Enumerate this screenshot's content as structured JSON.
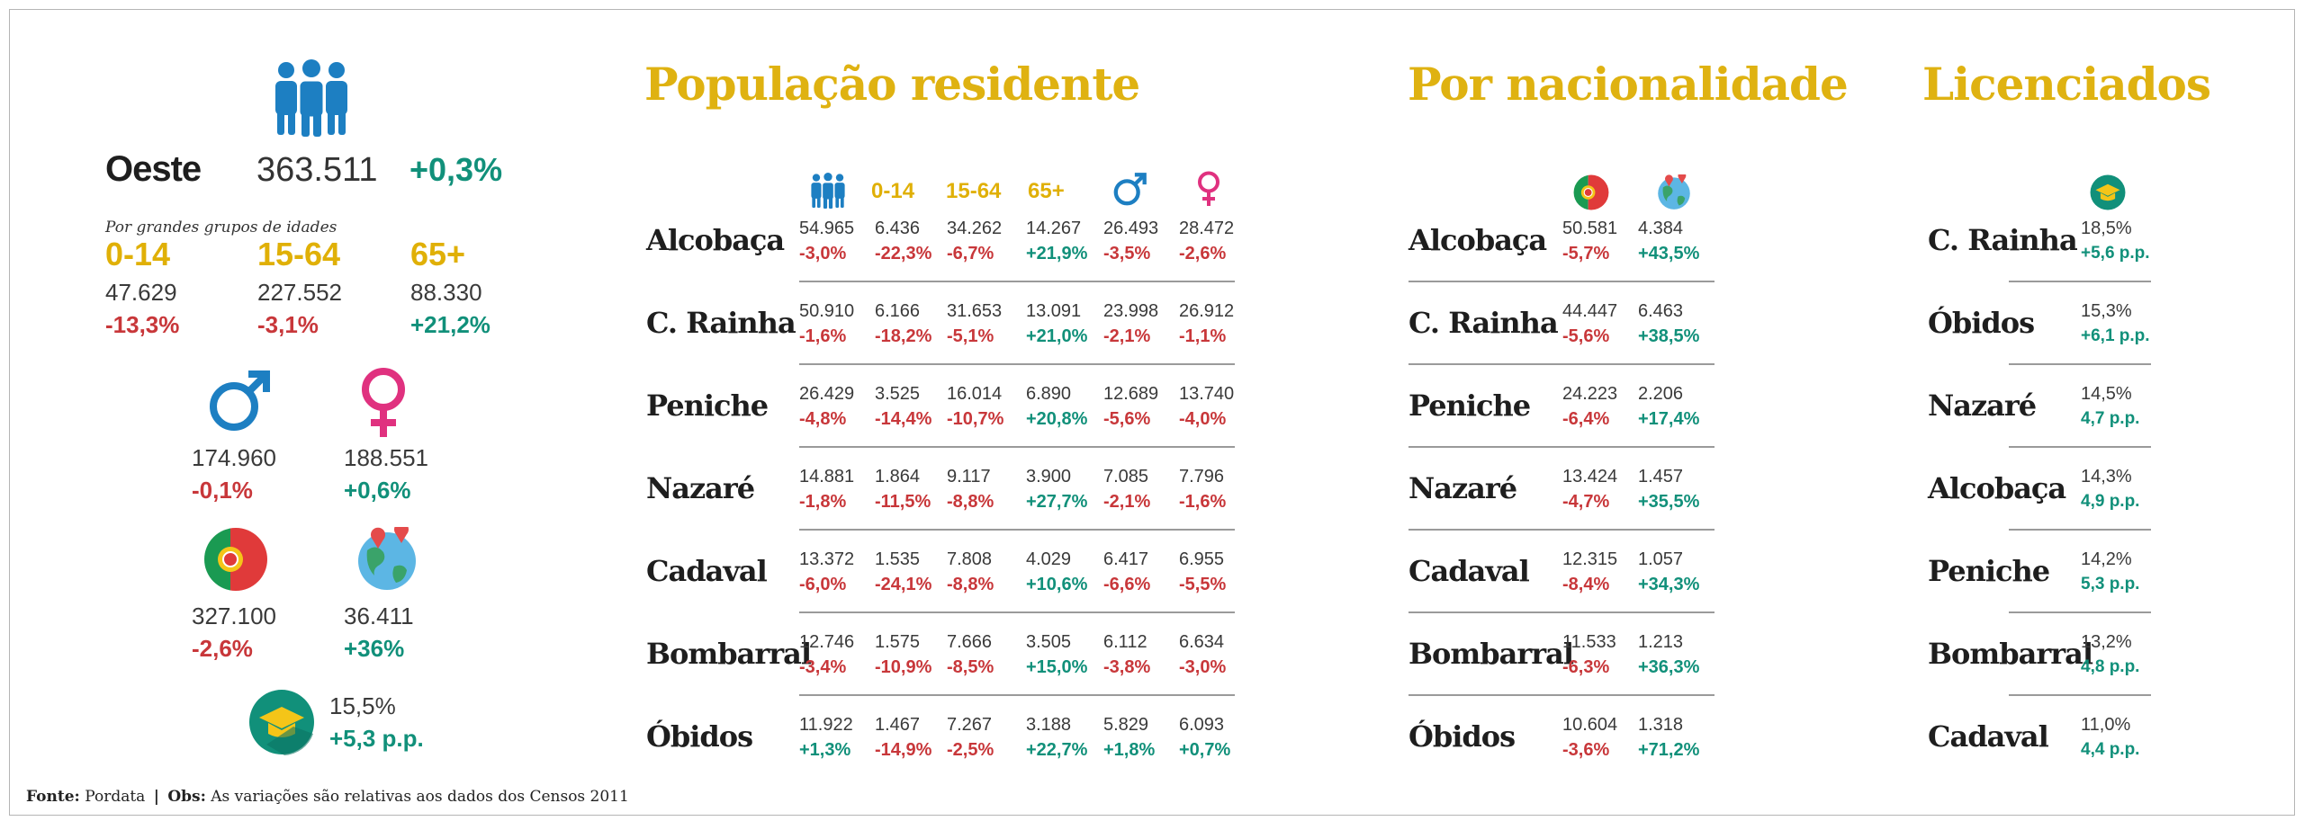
{
  "summary": {
    "region": "Oeste",
    "population": "363.511",
    "population_change": "+0,3%",
    "age_groups_label": "Por grandes grupos de idades",
    "age_groups": [
      {
        "label": "0-14",
        "value": "47.629",
        "change": "-13,3%"
      },
      {
        "label": "15-64",
        "value": "227.552",
        "change": "-3,1%"
      },
      {
        "label": "65+",
        "value": "88.330",
        "change": "+21,2%"
      }
    ],
    "male": {
      "value": "174.960",
      "change": "-0,1%"
    },
    "female": {
      "value": "188.551",
      "change": "+0,6%"
    },
    "portuguese": {
      "value": "327.100",
      "change": "-2,6%"
    },
    "foreign": {
      "value": "36.411",
      "change": "+36%"
    },
    "graduates": {
      "value": "15,5%",
      "change": "+5,3 p.p."
    }
  },
  "populacao": {
    "title": "População residente",
    "headers": [
      "0-14",
      "15-64",
      "65+"
    ],
    "rows": [
      {
        "name": "Alcobaça",
        "cells": [
          [
            "54.965",
            "-3,0%"
          ],
          [
            "6.436",
            "-22,3%"
          ],
          [
            "34.262",
            "-6,7%"
          ],
          [
            "14.267",
            "+21,9%"
          ],
          [
            "26.493",
            "-3,5%"
          ],
          [
            "28.472",
            "-2,6%"
          ]
        ]
      },
      {
        "name": "C. Rainha",
        "cells": [
          [
            "50.910",
            "-1,6%"
          ],
          [
            "6.166",
            "-18,2%"
          ],
          [
            "31.653",
            "-5,1%"
          ],
          [
            "13.091",
            "+21,0%"
          ],
          [
            "23.998",
            "-2,1%"
          ],
          [
            "26.912",
            "-1,1%"
          ]
        ]
      },
      {
        "name": "Peniche",
        "cells": [
          [
            "26.429",
            "-4,8%"
          ],
          [
            "3.525",
            "-14,4%"
          ],
          [
            "16.014",
            "-10,7%"
          ],
          [
            "6.890",
            "+20,8%"
          ],
          [
            "12.689",
            "-5,6%"
          ],
          [
            "13.740",
            "-4,0%"
          ]
        ]
      },
      {
        "name": "Nazaré",
        "cells": [
          [
            "14.881",
            "-1,8%"
          ],
          [
            "1.864",
            "-11,5%"
          ],
          [
            "9.117",
            "-8,8%"
          ],
          [
            "3.900",
            "+27,7%"
          ],
          [
            "7.085",
            "-2,1%"
          ],
          [
            "7.796",
            "-1,6%"
          ]
        ]
      },
      {
        "name": "Cadaval",
        "cells": [
          [
            "13.372",
            "-6,0%"
          ],
          [
            "1.535",
            "-24,1%"
          ],
          [
            "7.808",
            "-8,8%"
          ],
          [
            "4.029",
            "+10,6%"
          ],
          [
            "6.417",
            "-6,6%"
          ],
          [
            "6.955",
            "-5,5%"
          ]
        ]
      },
      {
        "name": "Bombarral",
        "cells": [
          [
            "12.746",
            "-3,4%"
          ],
          [
            "1.575",
            "-10,9%"
          ],
          [
            "7.666",
            "-8,5%"
          ],
          [
            "3.505",
            "+15,0%"
          ],
          [
            "6.112",
            "-3,8%"
          ],
          [
            "6.634",
            "-3,0%"
          ]
        ]
      },
      {
        "name": "Óbidos",
        "cells": [
          [
            "11.922",
            "+1,3%"
          ],
          [
            "1.467",
            "-14,9%"
          ],
          [
            "7.267",
            "-2,5%"
          ],
          [
            "3.188",
            "+22,7%"
          ],
          [
            "5.829",
            "+1,8%"
          ],
          [
            "6.093",
            "+0,7%"
          ]
        ]
      }
    ]
  },
  "nacionalidade": {
    "title": "Por nacionalidade",
    "rows": [
      {
        "name": "Alcobaça",
        "cells": [
          [
            "50.581",
            "-5,7%"
          ],
          [
            "4.384",
            "+43,5%"
          ]
        ]
      },
      {
        "name": "C. Rainha",
        "cells": [
          [
            "44.447",
            "-5,6%"
          ],
          [
            "6.463",
            "+38,5%"
          ]
        ]
      },
      {
        "name": "Peniche",
        "cells": [
          [
            "24.223",
            "-6,4%"
          ],
          [
            "2.206",
            "+17,4%"
          ]
        ]
      },
      {
        "name": "Nazaré",
        "cells": [
          [
            "13.424",
            "-4,7%"
          ],
          [
            "1.457",
            "+35,5%"
          ]
        ]
      },
      {
        "name": "Cadaval",
        "cells": [
          [
            "12.315",
            "-8,4%"
          ],
          [
            "1.057",
            "+34,3%"
          ]
        ]
      },
      {
        "name": "Bombarral",
        "cells": [
          [
            "11.533",
            "-6,3%"
          ],
          [
            "1.213",
            "+36,3%"
          ]
        ]
      },
      {
        "name": "Óbidos",
        "cells": [
          [
            "10.604",
            "-3,6%"
          ],
          [
            "1.318",
            "+71,2%"
          ]
        ]
      }
    ]
  },
  "licenciados": {
    "title": "Licenciados",
    "rows": [
      {
        "name": "C. Rainha",
        "value": "18,5%",
        "change": "+5,6 p.p."
      },
      {
        "name": "Óbidos",
        "value": "15,3%",
        "change": "+6,1 p.p."
      },
      {
        "name": "Nazaré",
        "value": "14,5%",
        "change": "4,7 p.p."
      },
      {
        "name": "Alcobaça",
        "value": "14,3%",
        "change": "4,9 p.p."
      },
      {
        "name": "Peniche",
        "value": "14,2%",
        "change": "5,3 p.p."
      },
      {
        "name": "Bombarral",
        "value": "13,2%",
        "change": "4,8 p.p."
      },
      {
        "name": "Cadaval",
        "value": "11,0%",
        "change": "4,4 p.p."
      }
    ]
  },
  "footer": {
    "source_label": "Fonte:",
    "source": "Pordata",
    "separator": "|",
    "obs_label": "Obs:",
    "obs": "As variações são relativas aos dados dos Censos 2011"
  },
  "colors": {
    "gold": "#dfb211",
    "red": "#c8373a",
    "green": "#11907a",
    "blue": "#1d7fc2",
    "pink": "#e0317f"
  }
}
